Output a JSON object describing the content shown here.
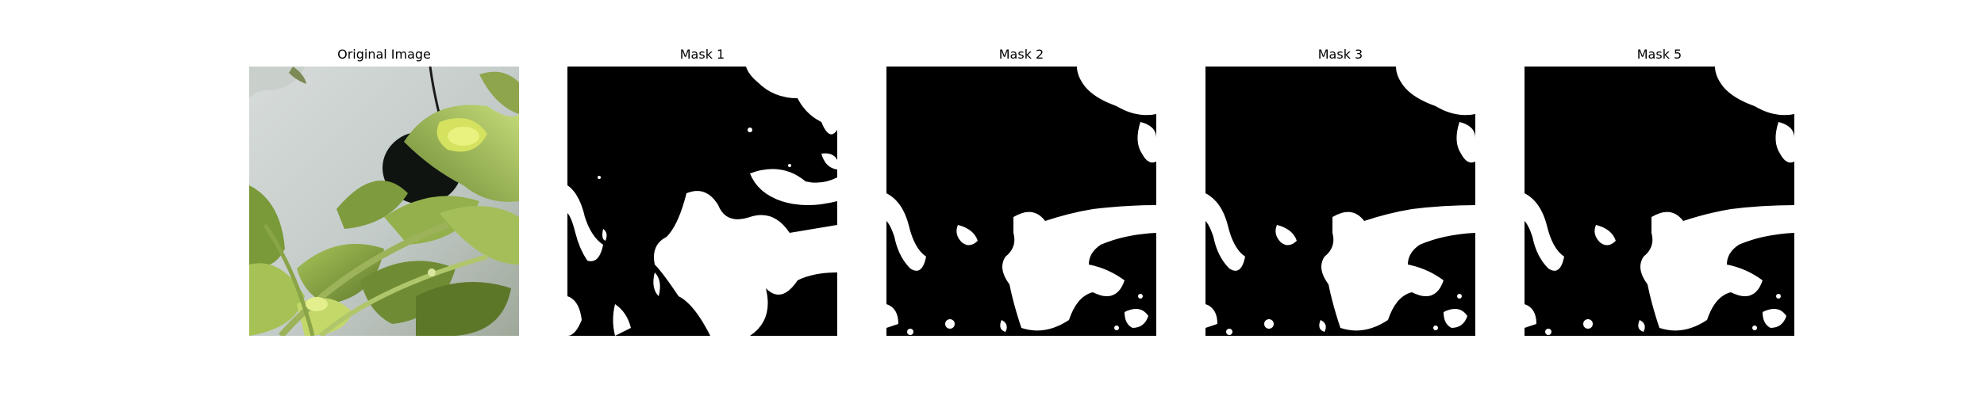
{
  "figure": {
    "panels": [
      {
        "title": "Original Image",
        "kind": "photo"
      },
      {
        "title": "Mask 1",
        "kind": "mask"
      },
      {
        "title": "Mask 2",
        "kind": "mask"
      },
      {
        "title": "Mask 3",
        "kind": "mask"
      },
      {
        "title": "Mask 5",
        "kind": "mask"
      }
    ],
    "colors": {
      "mask_background": "#000000",
      "mask_foreground": "#ffffff",
      "photo_background": "#c3cbc9",
      "leaf_dark": "#5f7a2a",
      "leaf_mid": "#86a445",
      "leaf_light": "#b3cf67",
      "pot_hole": "#101410"
    }
  }
}
